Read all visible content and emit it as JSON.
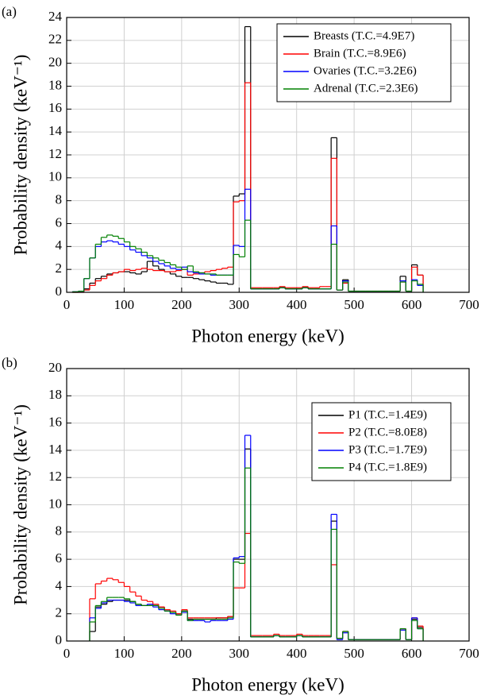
{
  "chart_data": [
    {
      "type": "histogram",
      "panel_label": "(a)",
      "x_label": "Photon energy (keV)",
      "y_label": "Probability density (keV⁻¹)",
      "xlim": [
        0,
        700
      ],
      "xticks": [
        0,
        100,
        200,
        300,
        400,
        500,
        600,
        700
      ],
      "ylim": [
        0,
        24
      ],
      "yticks": [
        0,
        2,
        4,
        6,
        8,
        10,
        12,
        14,
        16,
        18,
        20,
        22,
        24
      ],
      "grid": true,
      "legend": "upper right",
      "bins": [
        10,
        20,
        30,
        40,
        50,
        60,
        70,
        80,
        90,
        100,
        110,
        120,
        130,
        140,
        150,
        160,
        170,
        180,
        190,
        200,
        210,
        220,
        230,
        240,
        250,
        260,
        270,
        280,
        290,
        300,
        310,
        320,
        330,
        340,
        350,
        360,
        370,
        380,
        390,
        400,
        410,
        420,
        430,
        440,
        450,
        460,
        470,
        480,
        490,
        500,
        510,
        520,
        530,
        540,
        550,
        560,
        570,
        580,
        590,
        600,
        610,
        620
      ],
      "series": [
        {
          "name": "Breasts (T.C.=4.9E7)",
          "color": "#000000",
          "values": [
            0,
            0,
            0.3,
            0.8,
            1.2,
            1.4,
            1.6,
            1.7,
            1.8,
            1.8,
            1.7,
            1.6,
            1.8,
            2.7,
            2.3,
            2.0,
            1.8,
            1.6,
            1.4,
            1.3,
            1.3,
            1.2,
            1.1,
            1.0,
            0.9,
            0.8,
            0.8,
            0.7,
            8.4,
            8.6,
            23.2,
            0.3,
            0.3,
            0.3,
            0.3,
            0.3,
            0.4,
            0.3,
            0.3,
            0.3,
            0.4,
            0.3,
            0.3,
            0.3,
            0.3,
            13.5,
            0.2,
            1.1,
            0.1,
            0.1,
            0.1,
            0.1,
            0.1,
            0.1,
            0.1,
            0.1,
            0.1,
            1.4,
            0.1,
            2.4,
            1.5
          ]
        },
        {
          "name": "Brain (T.C.=8.9E6)",
          "color": "#ff0000",
          "values": [
            0,
            0,
            0.2,
            0.6,
            1.0,
            1.2,
            1.5,
            1.7,
            1.8,
            2.0,
            1.9,
            2.0,
            2.1,
            2.0,
            1.9,
            1.9,
            1.8,
            1.8,
            1.9,
            2.0,
            1.5,
            1.6,
            1.7,
            1.8,
            1.9,
            2.0,
            2.1,
            2.2,
            7.9,
            8.0,
            18.3,
            0.4,
            0.4,
            0.4,
            0.4,
            0.4,
            0.5,
            0.4,
            0.4,
            0.4,
            0.5,
            0.4,
            0.4,
            0.5,
            0.5,
            11.7,
            0.2,
            0.8,
            0.1,
            0.1,
            0.1,
            0.1,
            0.1,
            0.1,
            0.1,
            0.1,
            0.1,
            0.9,
            0.1,
            2.2,
            1.5
          ]
        },
        {
          "name": "Ovaries (T.C.=3.2E6)",
          "color": "#0000ff",
          "values": [
            0.05,
            0.1,
            1.2,
            3.0,
            4.0,
            4.4,
            4.5,
            4.4,
            4.2,
            4.0,
            3.7,
            3.5,
            3.2,
            3.0,
            2.7,
            2.5,
            2.3,
            2.1,
            2.0,
            2.2,
            1.8,
            1.7,
            1.6,
            1.6,
            1.5,
            1.5,
            1.5,
            1.5,
            4.1,
            4.0,
            9.0,
            0.3,
            0.3,
            0.3,
            0.3,
            0.3,
            0.4,
            0.3,
            0.3,
            0.3,
            0.4,
            0.3,
            0.3,
            0.3,
            0.3,
            5.8,
            0.2,
            1.0,
            0.1,
            0.1,
            0.1,
            0.1,
            0.1,
            0.1,
            0.1,
            0.1,
            0.1,
            1.0,
            0.1,
            1.1,
            0.6
          ]
        },
        {
          "name": "Adrenal (T.C.=2.3E6)",
          "color": "#008000",
          "values": [
            0.05,
            0.1,
            1.2,
            3.0,
            4.2,
            4.8,
            5.0,
            4.9,
            4.7,
            4.4,
            4.0,
            3.8,
            3.5,
            3.2,
            3.0,
            2.8,
            2.6,
            2.4,
            2.2,
            2.0,
            2.3,
            1.8,
            1.7,
            1.6,
            1.6,
            1.5,
            1.5,
            1.5,
            3.3,
            3.1,
            6.3,
            0.3,
            0.3,
            0.3,
            0.3,
            0.3,
            0.4,
            0.3,
            0.3,
            0.3,
            0.4,
            0.3,
            0.3,
            0.3,
            0.3,
            4.2,
            0.2,
            0.9,
            0.1,
            0.1,
            0.1,
            0.1,
            0.1,
            0.1,
            0.1,
            0.1,
            0.1,
            0.9,
            0.1,
            1.0,
            0.7
          ]
        }
      ]
    },
    {
      "type": "histogram",
      "panel_label": "(b)",
      "x_label": "Photon energy (keV)",
      "y_label": "Probability density (keV⁻¹)",
      "xlim": [
        0,
        700
      ],
      "xticks": [
        0,
        100,
        200,
        300,
        400,
        500,
        600,
        700
      ],
      "ylim": [
        0,
        20
      ],
      "yticks": [
        0,
        2,
        4,
        6,
        8,
        10,
        12,
        14,
        16,
        18,
        20
      ],
      "grid": true,
      "legend": "upper right",
      "bins": [
        40,
        50,
        60,
        70,
        80,
        90,
        100,
        110,
        120,
        130,
        140,
        150,
        160,
        170,
        180,
        190,
        200,
        210,
        220,
        230,
        240,
        250,
        260,
        270,
        280,
        290,
        300,
        310,
        320,
        330,
        340,
        350,
        360,
        370,
        380,
        390,
        400,
        410,
        420,
        430,
        440,
        450,
        460,
        470,
        480,
        490,
        500,
        510,
        520,
        530,
        540,
        550,
        560,
        570,
        580,
        590,
        600,
        610,
        620
      ],
      "series": [
        {
          "name": "P1 (T.C.=1.4E9)",
          "color": "#000000",
          "values": [
            0.7,
            2.5,
            2.7,
            2.9,
            3.0,
            3.0,
            3.0,
            2.9,
            2.7,
            2.6,
            2.6,
            2.6,
            2.5,
            2.3,
            2.1,
            2.0,
            2.2,
            1.6,
            1.6,
            1.6,
            1.6,
            1.6,
            1.7,
            1.7,
            1.8,
            6.0,
            6.0,
            14.1,
            0.3,
            0.3,
            0.3,
            0.3,
            0.4,
            0.3,
            0.3,
            0.3,
            0.4,
            0.3,
            0.3,
            0.3,
            0.3,
            0.3,
            8.8,
            0.2,
            0.7,
            0.1,
            0.1,
            0.1,
            0.1,
            0.1,
            0.1,
            0.1,
            0.1,
            0.1,
            0.9,
            0.1,
            1.6,
            1.0
          ]
        },
        {
          "name": "P2 (T.C.=8.0E8)",
          "color": "#ff0000",
          "values": [
            3.1,
            4.2,
            4.4,
            4.6,
            4.5,
            4.3,
            4.0,
            3.6,
            3.3,
            3.0,
            2.9,
            2.7,
            2.5,
            2.3,
            2.2,
            2.0,
            2.3,
            1.7,
            1.7,
            1.7,
            1.7,
            1.7,
            1.7,
            1.7,
            1.8,
            3.9,
            3.9,
            7.9,
            0.4,
            0.4,
            0.4,
            0.4,
            0.5,
            0.4,
            0.4,
            0.4,
            0.5,
            0.4,
            0.4,
            0.4,
            0.4,
            0.4,
            5.6,
            0.2,
            0.7,
            0.1,
            0.1,
            0.1,
            0.1,
            0.1,
            0.1,
            0.1,
            0.1,
            0.1,
            0.9,
            0.1,
            1.7,
            1.1
          ]
        },
        {
          "name": "P3 (T.C.=1.7E9)",
          "color": "#0000ff",
          "values": [
            1.7,
            2.4,
            2.8,
            3.0,
            3.0,
            3.0,
            2.9,
            2.8,
            2.6,
            2.6,
            2.7,
            2.5,
            2.3,
            2.2,
            2.0,
            1.9,
            2.1,
            1.5,
            1.5,
            1.5,
            1.4,
            1.5,
            1.5,
            1.5,
            1.6,
            6.1,
            6.2,
            15.1,
            0.3,
            0.3,
            0.3,
            0.3,
            0.4,
            0.3,
            0.3,
            0.3,
            0.4,
            0.3,
            0.3,
            0.3,
            0.3,
            0.3,
            9.3,
            0.1,
            0.6,
            0.1,
            0.1,
            0.1,
            0.1,
            0.1,
            0.1,
            0.1,
            0.1,
            0.1,
            0.8,
            0.1,
            1.7,
            0.9
          ]
        },
        {
          "name": "P4 (T.C.=1.8E9)",
          "color": "#008000",
          "values": [
            1.4,
            2.6,
            2.9,
            3.2,
            3.2,
            3.2,
            3.1,
            2.9,
            2.7,
            2.6,
            2.6,
            2.6,
            2.4,
            2.2,
            2.1,
            1.9,
            2.2,
            1.5,
            1.6,
            1.6,
            1.6,
            1.6,
            1.6,
            1.6,
            1.7,
            5.8,
            5.7,
            12.7,
            0.3,
            0.3,
            0.3,
            0.3,
            0.4,
            0.3,
            0.3,
            0.3,
            0.4,
            0.3,
            0.3,
            0.3,
            0.3,
            0.3,
            8.2,
            0.2,
            0.7,
            0.1,
            0.1,
            0.1,
            0.1,
            0.1,
            0.1,
            0.1,
            0.1,
            0.1,
            0.9,
            0.1,
            1.5,
            0.9
          ]
        }
      ]
    }
  ]
}
